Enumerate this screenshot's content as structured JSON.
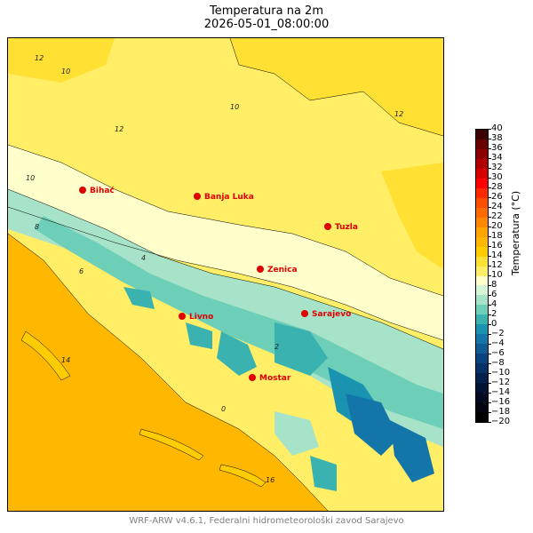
{
  "title": "Temperatura na 2m",
  "subtitle": "2026-05-01_08:00:00",
  "colorbar": {
    "label": "Temperatura (°C)",
    "ticks": [
      "40",
      "38",
      "36",
      "34",
      "32",
      "30",
      "28",
      "26",
      "24",
      "22",
      "20",
      "18",
      "16",
      "14",
      "12",
      "10",
      "8",
      "6",
      "4",
      "2",
      "0",
      "−2",
      "−4",
      "−6",
      "−8",
      "−10",
      "−12",
      "−14",
      "−16",
      "−18",
      "−20"
    ],
    "colors": [
      "#3b0000",
      "#680000",
      "#8b0000",
      "#b00000",
      "#d40000",
      "#ff0000",
      "#ff2a00",
      "#ff4d00",
      "#ff6a00",
      "#ff8800",
      "#ffa500",
      "#ffb700",
      "#ffcc00",
      "#ffe033",
      "#ffee66",
      "#ffffcc",
      "#d6f5d6",
      "#a6e3c9",
      "#6dcfb8",
      "#3ab3b0",
      "#1a93b0",
      "#1476a8",
      "#0f5c94",
      "#0a4480",
      "#063066",
      "#04204d",
      "#021433",
      "#010a1f",
      "#000510",
      "#000000"
    ]
  },
  "cities": [
    {
      "name": "Bihać"
    },
    {
      "name": "Banja Luka"
    },
    {
      "name": "Tuzla"
    },
    {
      "name": "Zenica"
    },
    {
      "name": "Sarajevo"
    },
    {
      "name": "Livno"
    },
    {
      "name": "Mostar"
    }
  ],
  "contour_labels": [
    "12",
    "10",
    "12",
    "10",
    "12",
    "10",
    "8",
    "6",
    "4",
    "2",
    "0",
    "14",
    "16"
  ],
  "footer": "WRF-ARW v4.6.1, Federalni hidrometeorološki zavod Sarajevo"
}
